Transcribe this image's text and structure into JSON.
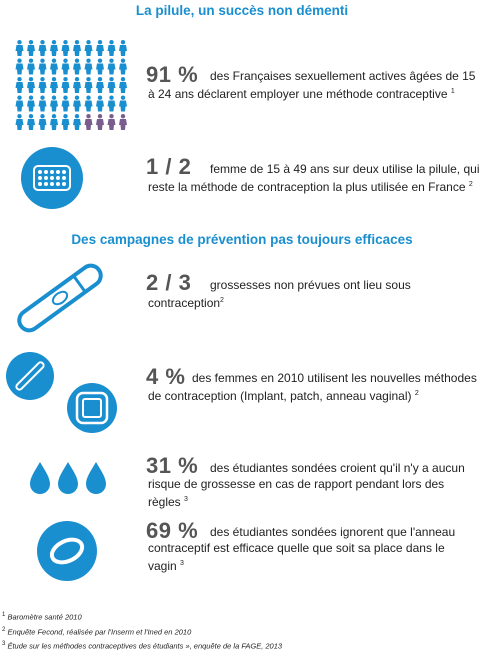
{
  "section1": {
    "title": "La pilule, un succès non démenti"
  },
  "stat1": {
    "number": "91 %",
    "text": "des Françaises sexuellement actives âgées de 15 à 24 ans déclarent employer une méthode contraceptive",
    "ref": "1",
    "icon": "people-grid-icon",
    "people_total": 50,
    "people_highlighted": 46
  },
  "stat2": {
    "number": "1 / 2",
    "text": "femme de 15 à 49 ans sur deux utilise la pilule, qui reste la méthode de contraception la plus utilisée en France",
    "ref": "2",
    "icon": "pill-pack-icon"
  },
  "section2": {
    "title": "Des campagnes de prévention pas toujours efficaces"
  },
  "stat3": {
    "number": "2 / 3",
    "text": "grossesses non prévues ont lieu sous contraception",
    "ref": "2",
    "icon": "pregnancy-test-icon"
  },
  "stat4": {
    "number": "4 %",
    "text": "des femmes en 2010 utilisent les nouvelles méthodes de contraception (Implant, patch, anneau vaginal)",
    "ref": "2",
    "icon": "implant-patch-icon"
  },
  "stat5": {
    "number": "31 %",
    "text": "des étudiantes sondées croient qu'il n'y a aucun risque de grossesse en cas de rapport pendant lors des règles",
    "ref": "3",
    "icon": "drops-icon"
  },
  "stat6": {
    "number": "69 %",
    "text": "des étudiantes sondées ignorent que l'anneau contraceptif est efficace quelle que soit sa place dans le vagin",
    "ref": "3",
    "icon": "ring-icon"
  },
  "footnotes": [
    {
      "num": "1",
      "text": "Baromètre santé 2010"
    },
    {
      "num": "2",
      "text": "Enquête Fecond, réalisée par l'Inserm et l'Ined en 2010"
    },
    {
      "num": "3",
      "text": "Étude sur les méthodes contraceptives des étudiants », enquête de la FAGE, 2013"
    }
  ],
  "colors": {
    "accent": "#1a8fcf",
    "highlight_people": "#1a8fcf",
    "other_people": "#7a5d8f",
    "number_gray": "#555555"
  }
}
